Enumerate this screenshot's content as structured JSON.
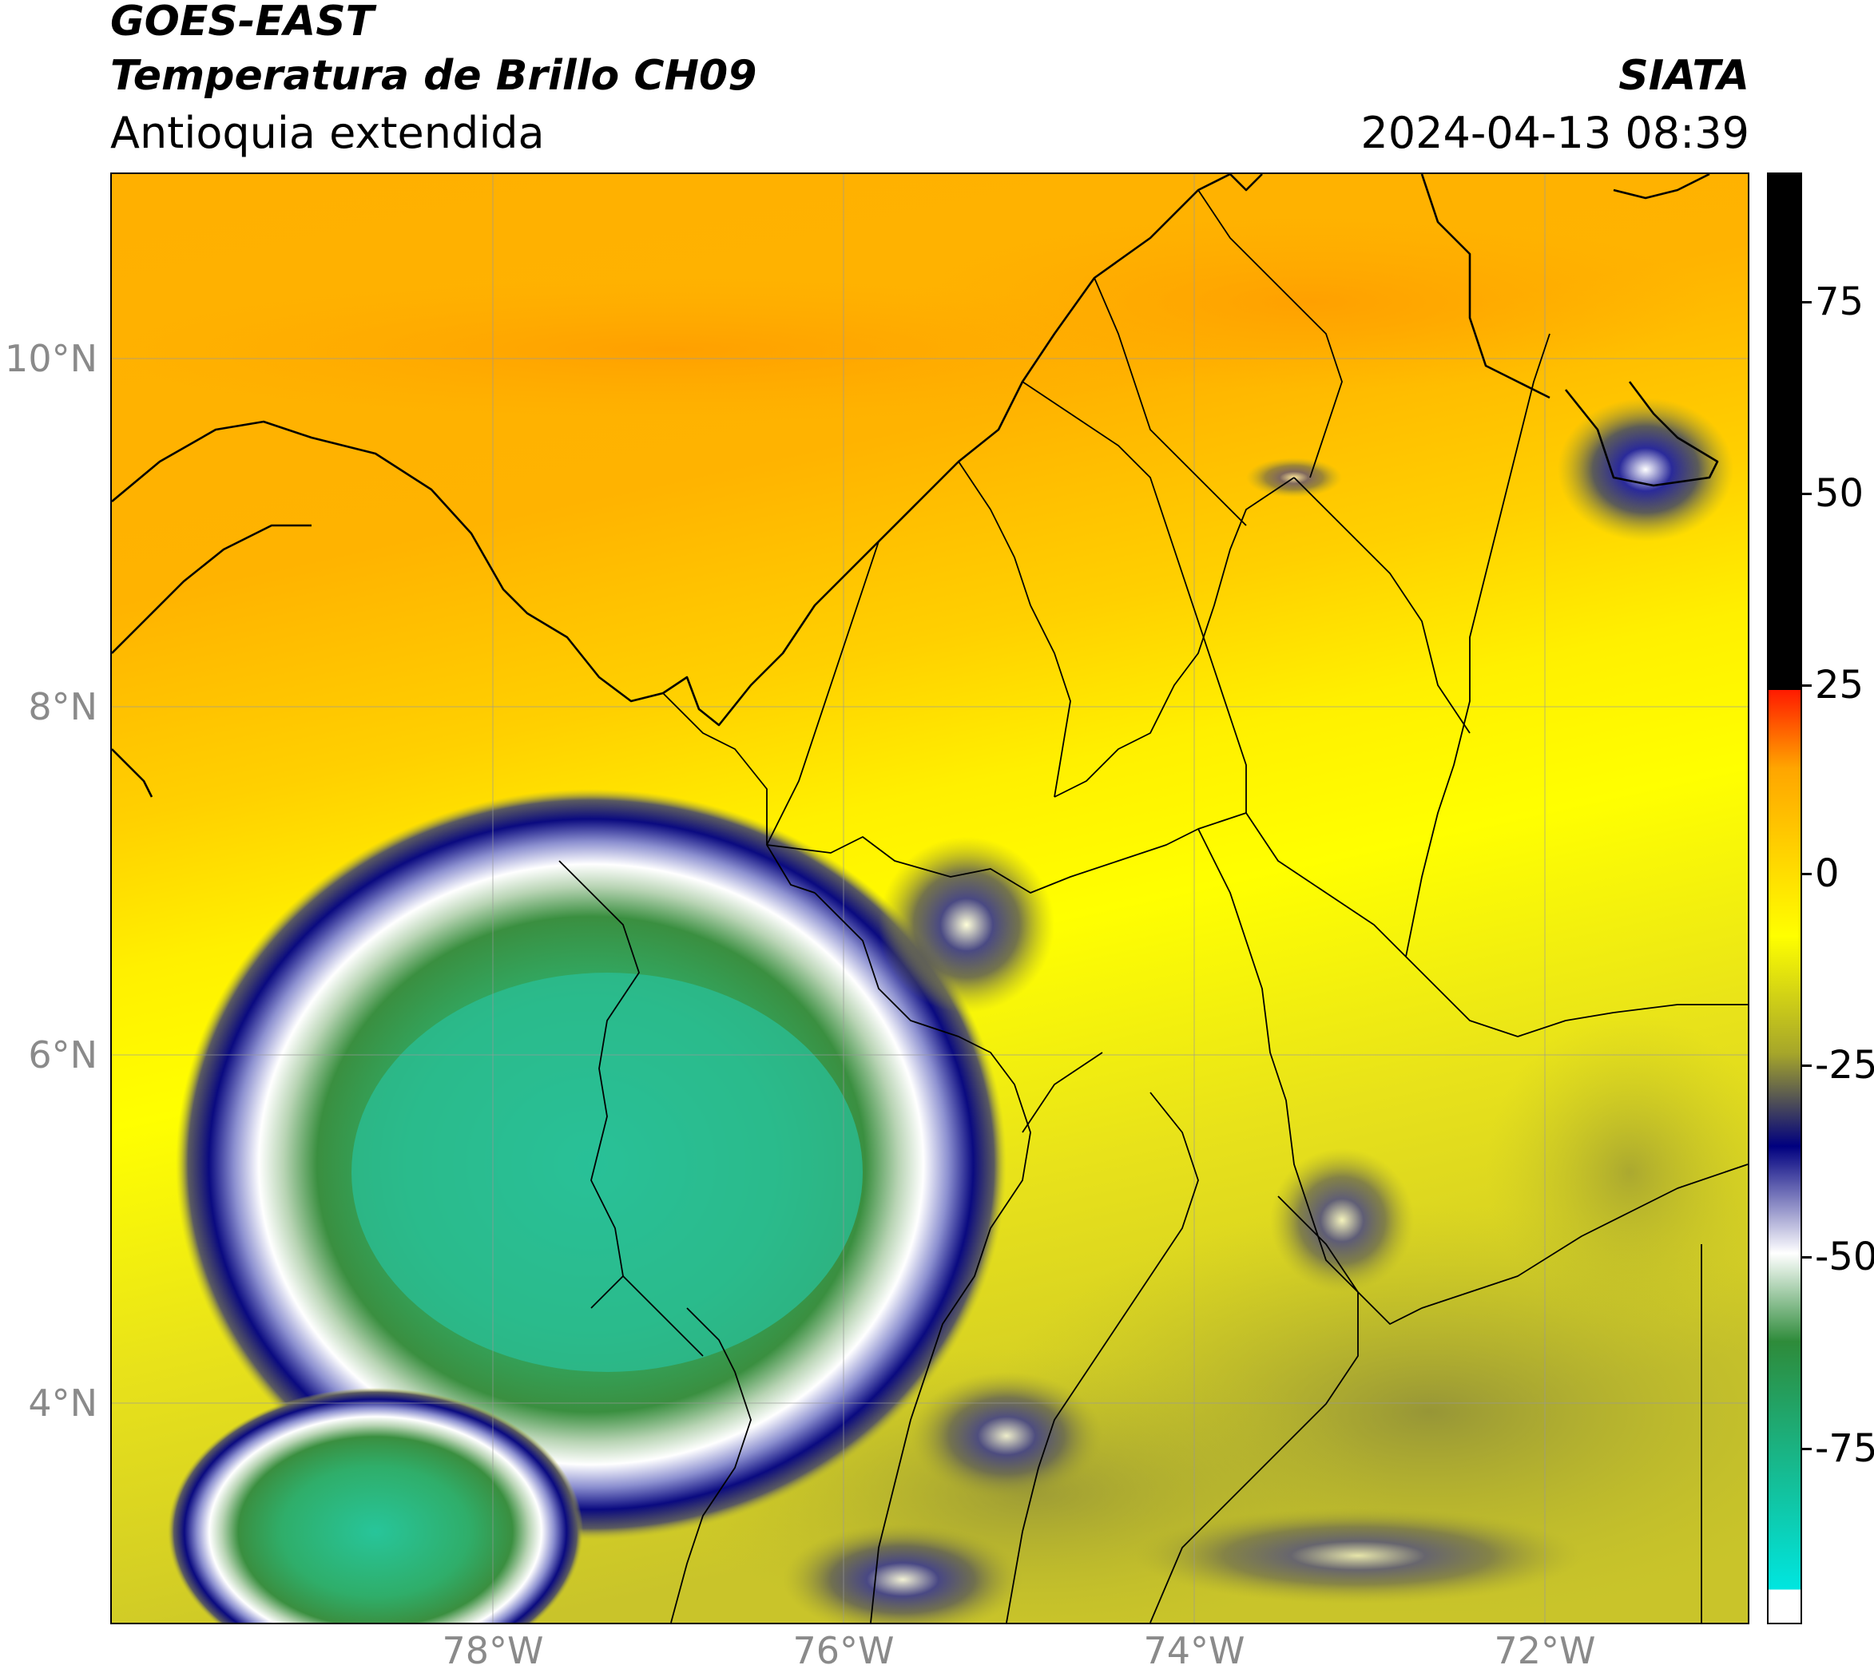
{
  "header": {
    "satellite": "GOES-EAST",
    "product": "Temperatura de Brillo CH09",
    "region": "Antioquia extendida",
    "organization": "SIATA",
    "datetime": "2024-04-13 08:39"
  },
  "map": {
    "lat_labels": [
      "10°N",
      "8°N",
      "6°N",
      "4°N"
    ],
    "lon_labels": [
      "78°W",
      "76°W",
      "74°W",
      "72°W"
    ]
  },
  "colorbar": {
    "tick_labels": [
      "75",
      "50",
      "25",
      "0",
      "-25",
      "-50",
      "-75"
    ],
    "colors": {
      "top": "#000000",
      "warm": "#ff1a00",
      "orange": "#ffa500",
      "yellow": "#ffff00",
      "olive": "#a6a62a",
      "navy": "#00007f",
      "white": "#ffffff",
      "green": "#2e8b3a",
      "cyan": "#00e6e0"
    }
  }
}
